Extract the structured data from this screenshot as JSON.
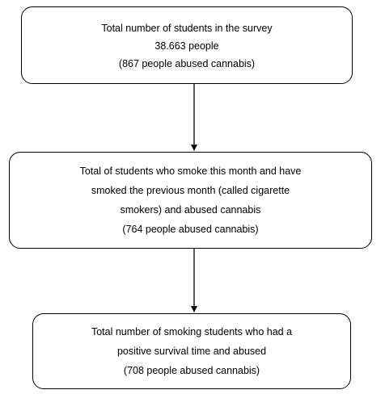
{
  "boxes": [
    {
      "lines": [
        "Total number of students in the survey",
        "38.663 people",
        "(867 people abused cannabis)"
      ]
    },
    {
      "lines": [
        "Total of students who smoke this month and have",
        "smoked the previous month (called cigarette",
        "smokers) and abused cannabis",
        "(764 people abused cannabis)"
      ]
    },
    {
      "lines": [
        "Total number of smoking students who had a",
        "positive survival time and abused",
        "(708 people abused cannabis)"
      ]
    }
  ]
}
